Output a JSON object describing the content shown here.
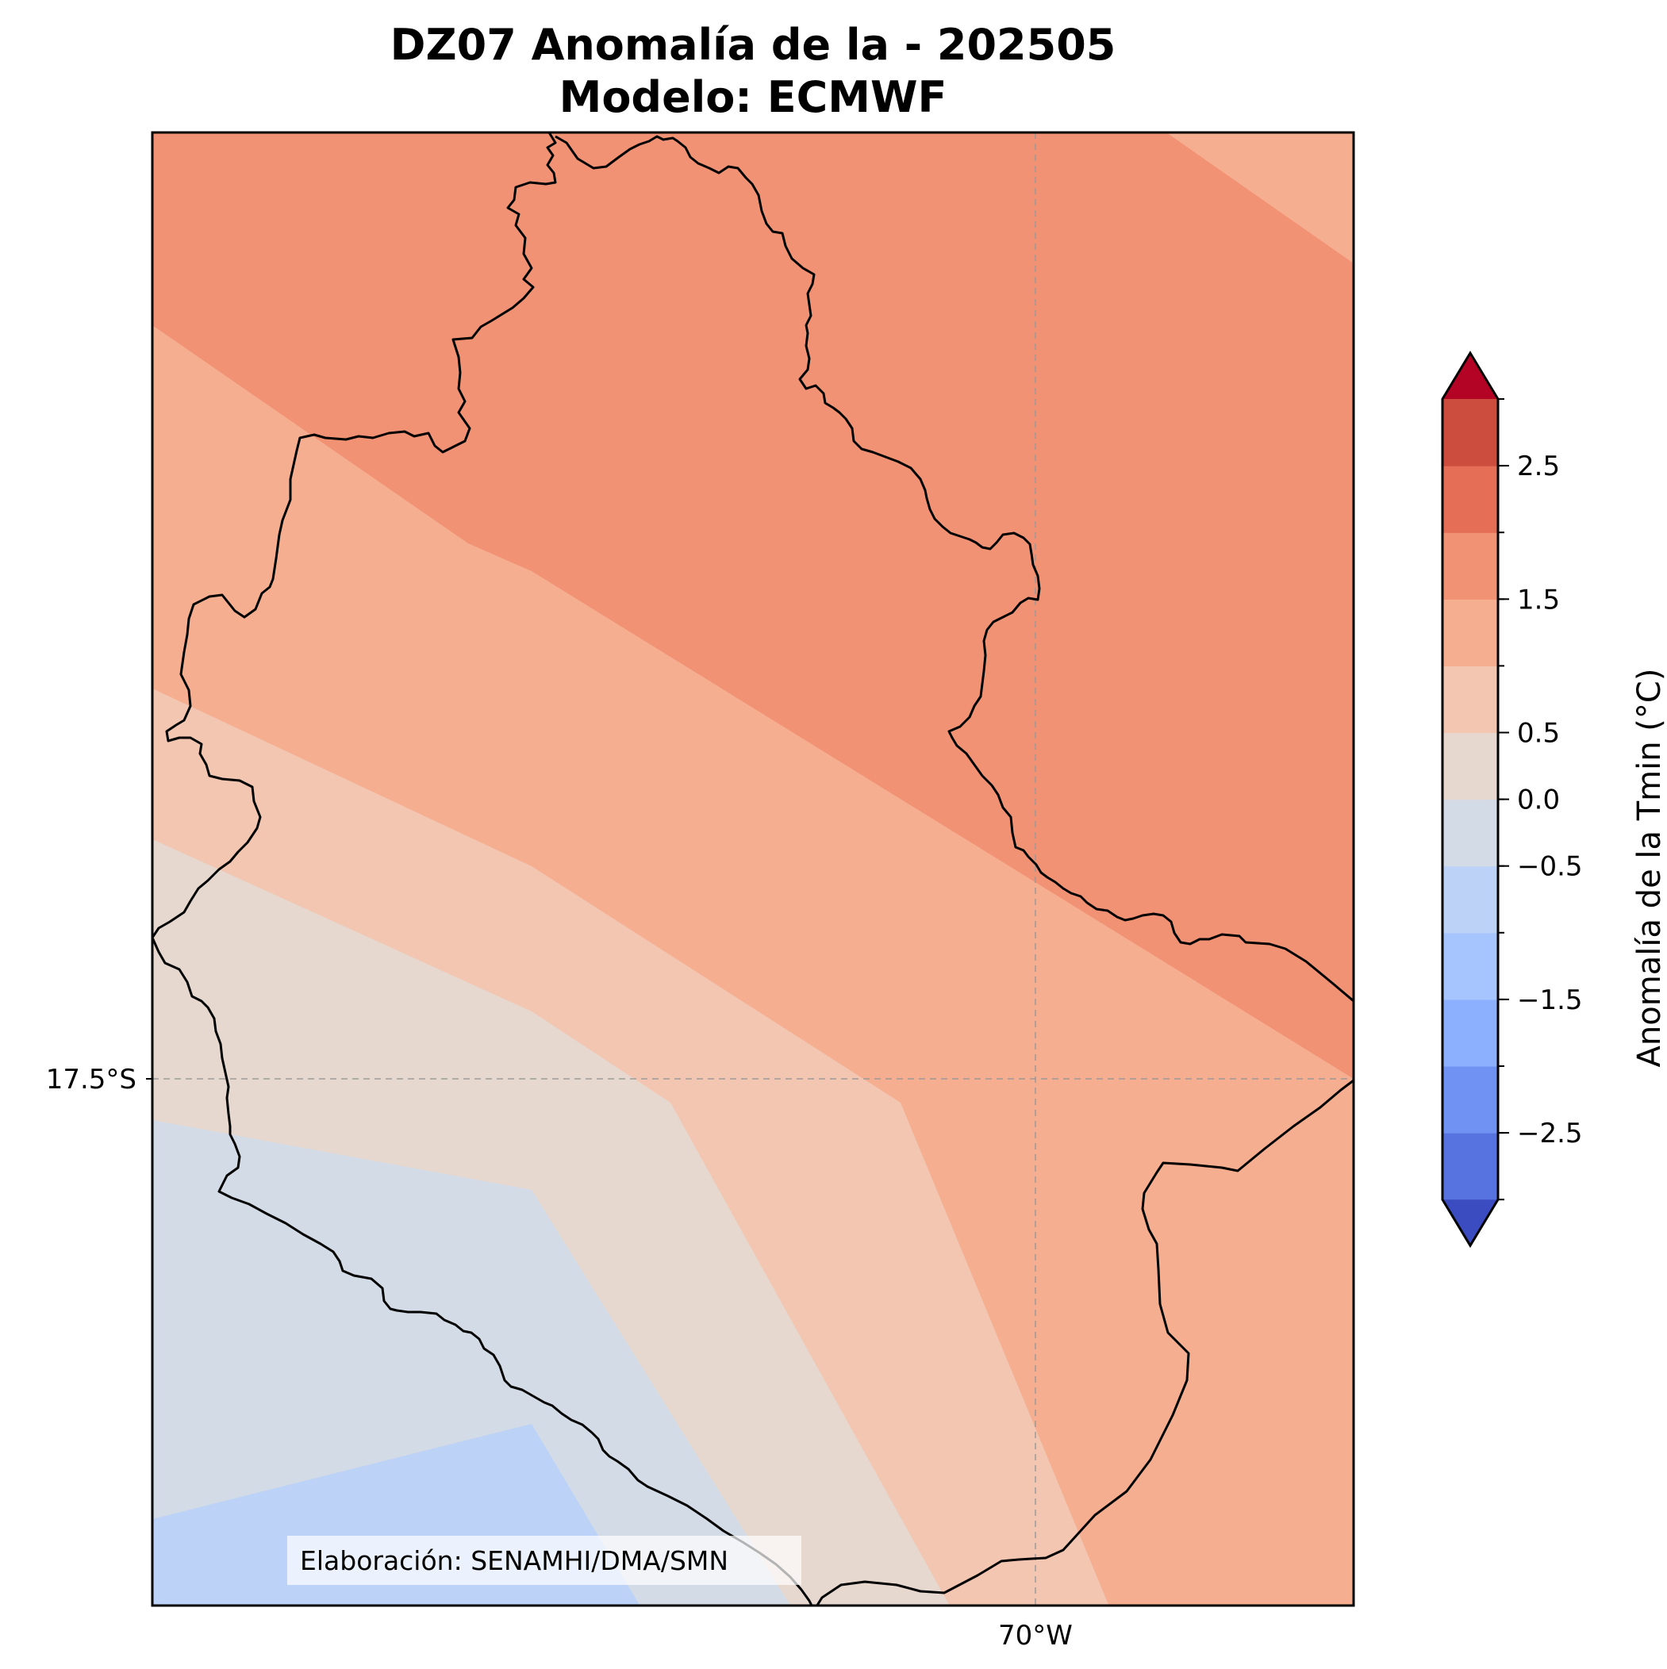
{
  "title": "DZ07 Anomalía de la - 202505",
  "subtitle": "Modelo: ECMWF",
  "axes": {
    "lat_label": "17.5°S",
    "lon_label": "70°W"
  },
  "colorbar": {
    "label": "Anomalía de la Tmin (°C)",
    "ticks": [
      "2.5",
      "1.5",
      "0.5",
      "0.0",
      "−0.5",
      "−1.5",
      "−2.5"
    ],
    "levels": [
      -3.0,
      -2.5,
      -2.0,
      -1.5,
      -1.0,
      -0.5,
      0.0,
      0.5,
      1.0,
      1.5,
      2.0,
      2.5,
      3.0
    ],
    "colors": [
      "#3b4cc0",
      "#5673e0",
      "#6f92f3",
      "#8caffe",
      "#a6c4fe",
      "#bcd2f7",
      "#d2dbe6",
      "#e6d8cf",
      "#f2c6b1",
      "#f6ae91",
      "#f29274",
      "#e46e56",
      "#cc4c3e",
      "#b40426"
    ],
    "extend": "both"
  },
  "map_fills": {
    "band_1p0_1p5": "#f29274",
    "band_0p75_1p0": "#f6ae91",
    "band_0p5_0p75": "#f2c6b1",
    "band_0p0_0p25": "#e6d8cf",
    "band_m0p25_0p0": "#d2dbe6",
    "band_m0p5_m0p25": "#bcd2f7"
  },
  "credit": "Elaboración: SENAMHI/DMA/SMN"
}
